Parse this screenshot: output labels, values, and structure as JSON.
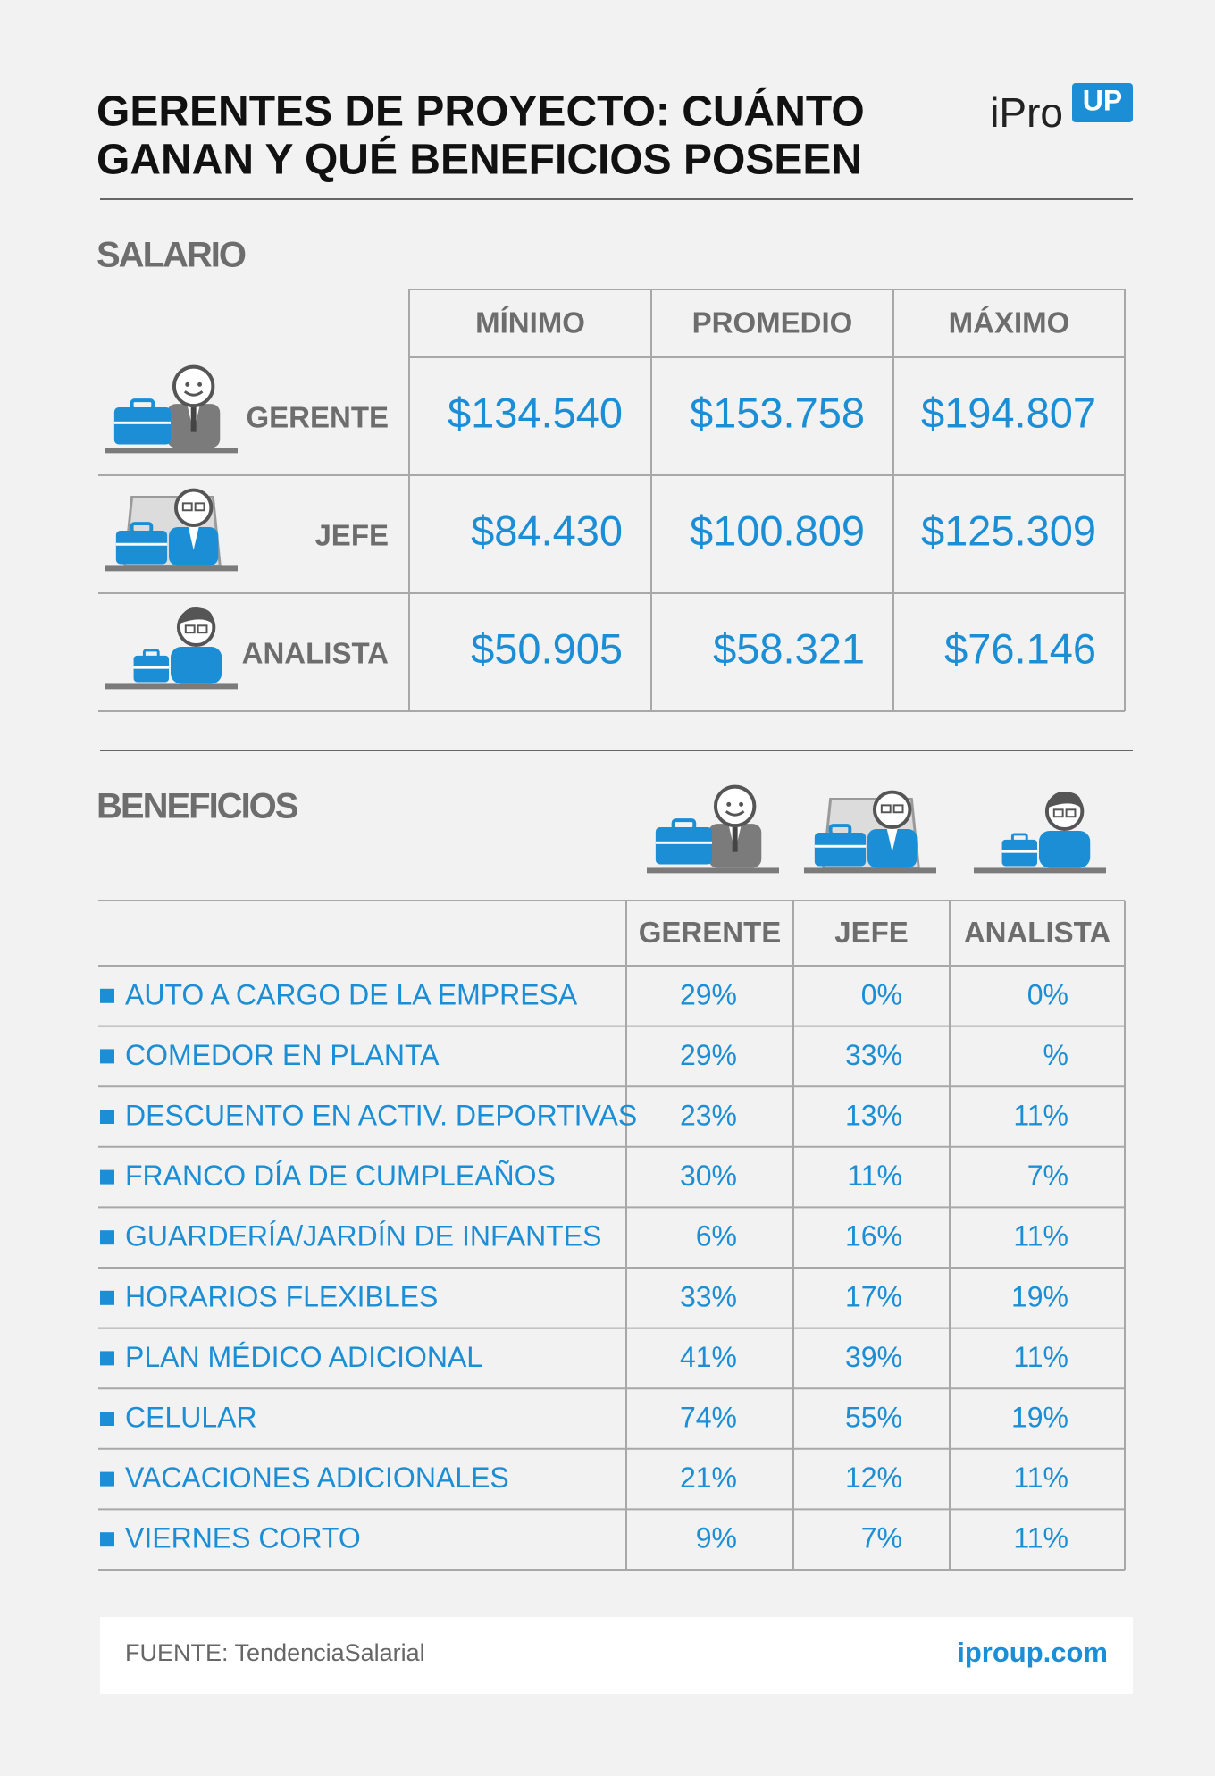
{
  "header": {
    "title_lines": [
      "GERENTES DE PROYECTO: CUÁNTO",
      "GANAN Y QUÉ BENEFICIOS POSEEN"
    ],
    "logo": "iPro",
    "logo_badge": "UP"
  },
  "salary": {
    "title": "SALARIO",
    "columns": [
      "MÍNIMO",
      "PROMEDIO",
      "MÁXIMO"
    ],
    "rows": [
      {
        "label": "GERENTE",
        "values": [
          "$134.540",
          "$153.758",
          "$194.807"
        ]
      },
      {
        "label": "JEFE",
        "values": [
          "$84.430",
          "$100.809",
          "$125.309"
        ]
      },
      {
        "label": "ANALISTA",
        "values": [
          "$50.905",
          "$58.321",
          "$76.146"
        ]
      }
    ]
  },
  "benefits": {
    "title": "BENEFICIOS",
    "columns": [
      "GERENTE",
      "JEFE",
      "ANALISTA"
    ],
    "rows": [
      {
        "label": "AUTO A CARGO DE LA EMPRESA",
        "values": [
          "29%",
          "0%",
          "0%"
        ]
      },
      {
        "label": "COMEDOR EN PLANTA",
        "values": [
          "29%",
          "33%",
          "%"
        ]
      },
      {
        "label": "DESCUENTO EN ACTIV. DEPORTIVAS",
        "values": [
          "23%",
          "13%",
          "11%"
        ]
      },
      {
        "label": "FRANCO DÍA DE CUMPLEAÑOS",
        "values": [
          "30%",
          "11%",
          "7%"
        ]
      },
      {
        "label": "GUARDERÍA/JARDÍN DE INFANTES",
        "values": [
          "6%",
          "16%",
          "11%"
        ]
      },
      {
        "label": "HORARIOS FLEXIBLES",
        "values": [
          "33%",
          "17%",
          "19%"
        ]
      },
      {
        "label": "PLAN MÉDICO ADICIONAL",
        "values": [
          "41%",
          "39%",
          "11%"
        ]
      },
      {
        "label": "CELULAR",
        "values": [
          "74%",
          "55%",
          "19%"
        ]
      },
      {
        "label": "VACACIONES ADICIONALES",
        "values": [
          "21%",
          "12%",
          "11%"
        ]
      },
      {
        "label": "VIERNES CORTO",
        "values": [
          "9%",
          "7%",
          "11%"
        ]
      }
    ]
  },
  "footer": {
    "source_label": "FUENTE:",
    "source": "TendenciaSalarial",
    "site": "iproup.com"
  }
}
